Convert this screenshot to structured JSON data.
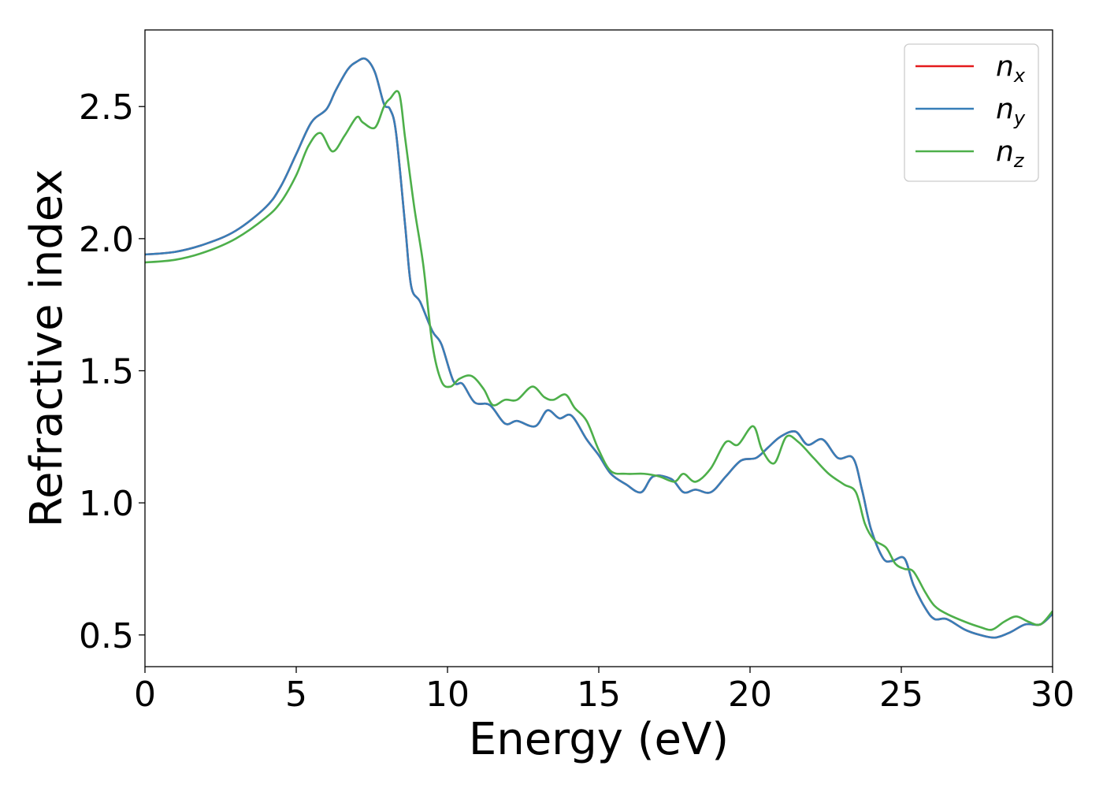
{
  "chart_data": {
    "type": "line",
    "title": "",
    "xlabel": "Energy (eV)",
    "ylabel": "Refractive index",
    "xlim": [
      0,
      30
    ],
    "ylim": [
      0.38,
      2.79
    ],
    "xticks": [
      0,
      5,
      10,
      15,
      20,
      25,
      30
    ],
    "xtick_labels": [
      "0",
      "5",
      "10",
      "15",
      "20",
      "25",
      "30"
    ],
    "yticks": [
      0.5,
      1.0,
      1.5,
      2.0,
      2.5
    ],
    "ytick_labels": [
      "0.5",
      "1.0",
      "1.5",
      "2.0",
      "2.5"
    ],
    "grid": false,
    "legend_position": "top-right",
    "series": [
      {
        "name": "n_x",
        "label_main": "n",
        "label_sub": "x",
        "color": "#e41a1c",
        "x": [
          0,
          1,
          2,
          3,
          4,
          4.5,
          5,
          5.5,
          6,
          6.3,
          6.7,
          7,
          7.3,
          7.6,
          7.9,
          8.1,
          8.3,
          8.6,
          8.8,
          9.1,
          9.5,
          9.8,
          10.2,
          10.5,
          10.9,
          11.4,
          11.9,
          12.3,
          12.9,
          13.3,
          13.7,
          14.1,
          14.6,
          15,
          15.4,
          15.9,
          16.4,
          16.8,
          17.4,
          17.8,
          18.2,
          18.7,
          19.2,
          19.7,
          20.2,
          20.6,
          21,
          21.5,
          21.9,
          22.4,
          22.9,
          23.4,
          23.7,
          24,
          24.4,
          24.7,
          25.1,
          25.4,
          25.8,
          26.1,
          26.5,
          27.1,
          27.6,
          28.1,
          28.6,
          29.1,
          29.6,
          30
        ],
        "y": [
          1.94,
          1.95,
          1.98,
          2.03,
          2.12,
          2.2,
          2.32,
          2.44,
          2.49,
          2.56,
          2.64,
          2.67,
          2.68,
          2.63,
          2.51,
          2.49,
          2.4,
          2.05,
          1.82,
          1.76,
          1.65,
          1.6,
          1.46,
          1.45,
          1.38,
          1.37,
          1.3,
          1.31,
          1.29,
          1.35,
          1.32,
          1.33,
          1.24,
          1.18,
          1.11,
          1.07,
          1.04,
          1.1,
          1.09,
          1.04,
          1.05,
          1.04,
          1.1,
          1.16,
          1.17,
          1.21,
          1.25,
          1.27,
          1.22,
          1.24,
          1.17,
          1.17,
          1.05,
          0.9,
          0.79,
          0.78,
          0.79,
          0.69,
          0.6,
          0.56,
          0.56,
          0.52,
          0.5,
          0.49,
          0.51,
          0.54,
          0.54,
          0.58
        ]
      },
      {
        "name": "n_y",
        "label_main": "n",
        "label_sub": "y",
        "color": "#377eb8",
        "x": [
          0,
          1,
          2,
          3,
          4,
          4.5,
          5,
          5.5,
          6,
          6.3,
          6.7,
          7,
          7.3,
          7.6,
          7.9,
          8.1,
          8.3,
          8.6,
          8.8,
          9.1,
          9.5,
          9.8,
          10.2,
          10.5,
          10.9,
          11.4,
          11.9,
          12.3,
          12.9,
          13.3,
          13.7,
          14.1,
          14.6,
          15,
          15.4,
          15.9,
          16.4,
          16.8,
          17.4,
          17.8,
          18.2,
          18.7,
          19.2,
          19.7,
          20.2,
          20.6,
          21,
          21.5,
          21.9,
          22.4,
          22.9,
          23.4,
          23.7,
          24,
          24.4,
          24.7,
          25.1,
          25.4,
          25.8,
          26.1,
          26.5,
          27.1,
          27.6,
          28.1,
          28.6,
          29.1,
          29.6,
          30
        ],
        "y": [
          1.94,
          1.95,
          1.98,
          2.03,
          2.12,
          2.2,
          2.32,
          2.44,
          2.49,
          2.56,
          2.64,
          2.67,
          2.68,
          2.63,
          2.51,
          2.49,
          2.4,
          2.05,
          1.82,
          1.76,
          1.65,
          1.6,
          1.46,
          1.45,
          1.38,
          1.37,
          1.3,
          1.31,
          1.29,
          1.35,
          1.32,
          1.33,
          1.24,
          1.18,
          1.11,
          1.07,
          1.04,
          1.1,
          1.09,
          1.04,
          1.05,
          1.04,
          1.1,
          1.16,
          1.17,
          1.21,
          1.25,
          1.27,
          1.22,
          1.24,
          1.17,
          1.17,
          1.05,
          0.9,
          0.79,
          0.78,
          0.79,
          0.69,
          0.6,
          0.56,
          0.56,
          0.52,
          0.5,
          0.49,
          0.51,
          0.54,
          0.54,
          0.58
        ]
      },
      {
        "name": "n_z",
        "label_main": "n",
        "label_sub": "z",
        "color": "#4daf4a",
        "x": [
          0,
          1,
          2,
          3,
          4,
          4.5,
          5,
          5.4,
          5.8,
          6.2,
          6.6,
          7,
          7.2,
          7.6,
          7.9,
          8.1,
          8.4,
          8.6,
          8.9,
          9.2,
          9.5,
          9.8,
          10.1,
          10.4,
          10.8,
          11.2,
          11.5,
          11.9,
          12.3,
          12.8,
          13.2,
          13.5,
          13.9,
          14.2,
          14.6,
          15,
          15.4,
          15.9,
          16.5,
          17,
          17.5,
          17.8,
          18.2,
          18.7,
          19.2,
          19.6,
          20.1,
          20.4,
          20.8,
          21.2,
          21.6,
          22.1,
          22.6,
          23.1,
          23.5,
          23.8,
          24.1,
          24.5,
          24.8,
          25.1,
          25.4,
          25.8,
          26.1,
          26.5,
          27.1,
          27.6,
          28,
          28.4,
          28.8,
          29.2,
          29.6,
          30
        ],
        "y": [
          1.91,
          1.92,
          1.95,
          2.0,
          2.08,
          2.14,
          2.24,
          2.35,
          2.4,
          2.33,
          2.39,
          2.46,
          2.44,
          2.42,
          2.5,
          2.53,
          2.55,
          2.38,
          2.12,
          1.9,
          1.6,
          1.46,
          1.44,
          1.47,
          1.48,
          1.43,
          1.37,
          1.39,
          1.39,
          1.44,
          1.4,
          1.39,
          1.41,
          1.36,
          1.31,
          1.2,
          1.12,
          1.11,
          1.11,
          1.1,
          1.08,
          1.11,
          1.08,
          1.13,
          1.23,
          1.22,
          1.29,
          1.2,
          1.15,
          1.25,
          1.23,
          1.17,
          1.11,
          1.07,
          1.04,
          0.92,
          0.86,
          0.83,
          0.77,
          0.75,
          0.74,
          0.66,
          0.61,
          0.58,
          0.55,
          0.53,
          0.52,
          0.55,
          0.57,
          0.55,
          0.54,
          0.59
        ]
      }
    ]
  }
}
